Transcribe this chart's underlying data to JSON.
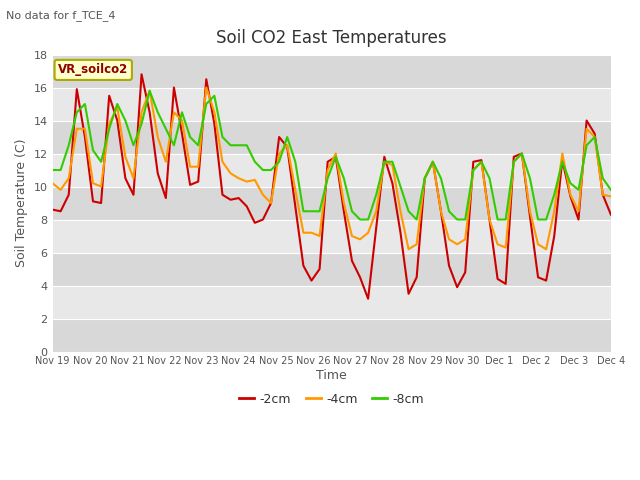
{
  "title": "Soil CO2 East Temperatures",
  "subtitle": "No data for f_TCE_4",
  "xlabel": "Time",
  "ylabel": "Soil Temperature (C)",
  "ylim": [
    0,
    18
  ],
  "legend_label": "VR_soilco2",
  "series_labels": [
    "-2cm",
    "-4cm",
    "-8cm"
  ],
  "series_colors": [
    "#cc0000",
    "#ff9900",
    "#33cc00"
  ],
  "tick_labels": [
    "Nov 19",
    "Nov 20",
    "Nov 21",
    "Nov 22",
    "Nov 23",
    "Nov 24",
    "Nov 25",
    "Nov 26",
    "Nov 27",
    "Nov 28",
    "Nov 29",
    "Nov 30",
    "Dec 1",
    "Dec 2",
    "Dec 3",
    "Dec 4"
  ],
  "t_2cm": [
    8.6,
    8.5,
    9.5,
    15.9,
    13.0,
    9.1,
    9.0,
    15.5,
    14.0,
    10.5,
    9.5,
    16.8,
    14.5,
    10.8,
    9.3,
    16.0,
    13.2,
    10.1,
    10.3,
    16.5,
    13.8,
    9.5,
    9.2,
    9.3,
    8.8,
    7.8,
    8.0,
    9.0,
    13.0,
    12.4,
    8.8,
    5.2,
    4.3,
    5.0,
    11.5,
    11.8,
    8.5,
    5.5,
    4.5,
    3.2,
    7.5,
    11.8,
    10.2,
    7.2,
    3.5,
    4.5,
    10.5,
    11.5,
    8.5,
    5.2,
    3.9,
    4.8,
    11.5,
    11.6,
    8.0,
    4.4,
    4.1,
    11.8,
    12.0,
    8.2,
    4.5,
    4.3,
    7.0,
    11.6,
    9.4,
    8.0,
    14.0,
    13.2,
    9.5,
    8.3
  ],
  "t_4cm": [
    10.2,
    9.8,
    10.5,
    13.5,
    13.5,
    10.2,
    10.0,
    13.8,
    14.8,
    11.8,
    10.5,
    14.5,
    15.8,
    13.0,
    11.5,
    14.5,
    14.0,
    11.2,
    11.2,
    16.0,
    14.5,
    11.5,
    10.8,
    10.5,
    10.3,
    10.4,
    9.5,
    9.0,
    12.0,
    12.5,
    9.8,
    7.2,
    7.2,
    7.0,
    11.0,
    12.0,
    9.0,
    7.0,
    6.8,
    7.2,
    8.5,
    11.5,
    11.3,
    8.5,
    6.2,
    6.5,
    10.5,
    11.5,
    8.5,
    6.8,
    6.5,
    6.8,
    11.0,
    11.5,
    8.0,
    6.5,
    6.3,
    11.5,
    12.0,
    8.5,
    6.5,
    6.2,
    8.5,
    12.0,
    9.5,
    8.5,
    13.5,
    13.0,
    9.5,
    9.4
  ],
  "t_8cm": [
    11.0,
    11.0,
    12.5,
    14.5,
    15.0,
    12.2,
    11.5,
    13.5,
    15.0,
    14.0,
    12.5,
    13.8,
    15.8,
    14.5,
    13.5,
    12.5,
    14.5,
    13.0,
    12.5,
    15.0,
    15.5,
    13.0,
    12.5,
    12.5,
    12.5,
    11.5,
    11.0,
    11.0,
    11.5,
    13.0,
    11.5,
    8.5,
    8.5,
    8.5,
    10.5,
    11.8,
    10.5,
    8.5,
    8.0,
    8.0,
    9.5,
    11.5,
    11.5,
    10.0,
    8.5,
    8.0,
    10.5,
    11.5,
    10.5,
    8.5,
    8.0,
    8.0,
    11.0,
    11.5,
    10.5,
    8.0,
    8.0,
    11.5,
    12.0,
    10.5,
    8.0,
    8.0,
    9.5,
    11.5,
    10.2,
    9.8,
    12.5,
    13.0,
    10.5,
    9.8
  ]
}
